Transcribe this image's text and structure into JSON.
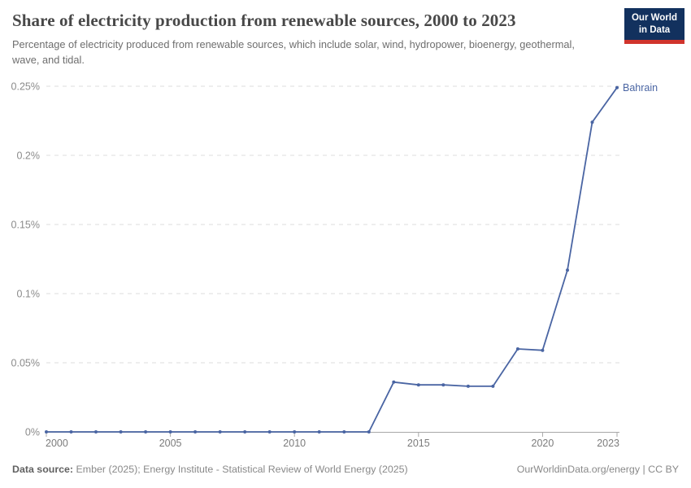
{
  "header": {
    "title": "Share of electricity production from renewable sources, 2000 to 2023",
    "subtitle": "Percentage of electricity produced from renewable sources, which include solar, wind, hydropower, bioenergy, geothermal, wave, and tidal.",
    "logo": {
      "line1": "Our World",
      "line2": "in Data",
      "bg_color": "#12315e",
      "bar_color": "#d0342c"
    }
  },
  "chart_data": {
    "type": "line",
    "title": "Share of electricity production from renewable sources, 2000 to 2023",
    "xlabel": "",
    "ylabel": "",
    "xlim": [
      2000,
      2023
    ],
    "ylim": [
      0,
      0.25
    ],
    "grid": "horizontal-dashed",
    "legend": "end-of-line-label",
    "x": [
      2000,
      2001,
      2002,
      2003,
      2004,
      2005,
      2006,
      2007,
      2008,
      2009,
      2010,
      2011,
      2012,
      2013,
      2014,
      2015,
      2016,
      2017,
      2018,
      2019,
      2020,
      2021,
      2022,
      2023
    ],
    "series": [
      {
        "name": "Bahrain",
        "color": "#4a65a3",
        "values": [
          0,
          0,
          0,
          0,
          0,
          0,
          0,
          0,
          0,
          0,
          0,
          0,
          0,
          0,
          0.036,
          0.034,
          0.034,
          0.033,
          0.033,
          0.06,
          0.059,
          0.117,
          0.224,
          0.249
        ]
      }
    ],
    "yticks": [
      {
        "value": 0,
        "label": "0%"
      },
      {
        "value": 0.05,
        "label": "0.05%"
      },
      {
        "value": 0.1,
        "label": "0.1%"
      },
      {
        "value": 0.15,
        "label": "0.15%"
      },
      {
        "value": 0.2,
        "label": "0.2%"
      },
      {
        "value": 0.25,
        "label": "0.25%"
      }
    ],
    "xticks": [
      {
        "value": 2000,
        "label": "2000"
      },
      {
        "value": 2005,
        "label": "2005"
      },
      {
        "value": 2010,
        "label": "2010"
      },
      {
        "value": 2015,
        "label": "2015"
      },
      {
        "value": 2020,
        "label": "2020"
      },
      {
        "value": 2023,
        "label": "2023"
      }
    ],
    "style": {
      "gridline_color": "#dedede",
      "axis_color": "#a8a8a8",
      "tick_label_color": "#8b8b8b"
    }
  },
  "footer": {
    "source_label": "Data source:",
    "source_text": "Ember (2025); Energy Institute - Statistical Review of World Energy (2025)",
    "right_text": "OurWorldinData.org/energy | CC BY"
  }
}
